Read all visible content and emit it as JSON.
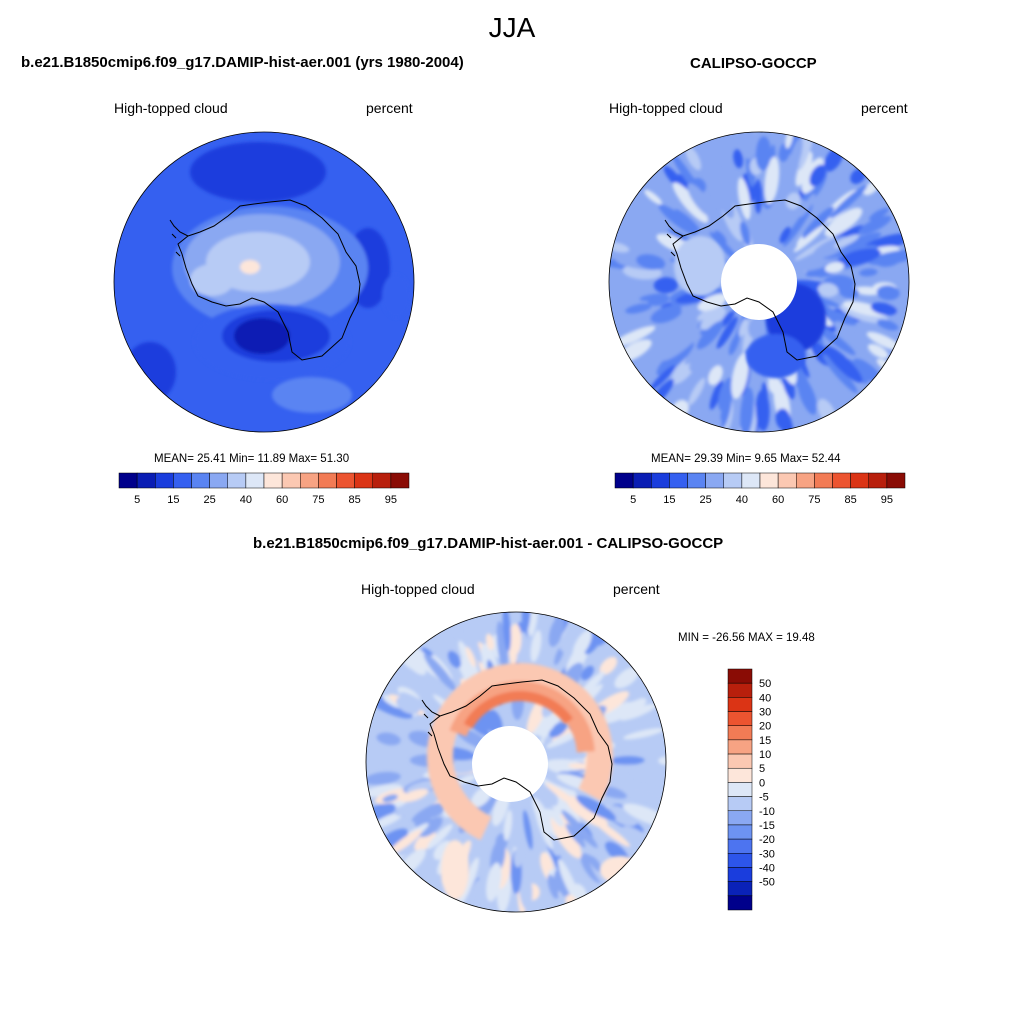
{
  "figure": {
    "title": "JJA"
  },
  "panels": [
    {
      "title": "b.e21.B1850cmip6.f09_g17.DAMIP-hist-aer.001 (yrs 1980-2004)",
      "variable": "High-topped cloud",
      "units": "percent",
      "stats": {
        "mean": "25.41",
        "min": "11.89",
        "max": "51.30"
      },
      "stats_text": "MEAN=  25.41  Min=  11.89  Max=  51.30"
    },
    {
      "title": "CALIPSO-GOCCP",
      "variable": "High-topped cloud",
      "units": "percent",
      "stats": {
        "mean": "29.39",
        "min": "9.65",
        "max": "52.44"
      },
      "stats_text": "MEAN=  29.39  Min=   9.65  Max=  52.44"
    },
    {
      "title": "b.e21.B1850cmip6.f09_g17.DAMIP-hist-aer.001 - CALIPSO-GOCCP",
      "variable": "High-topped cloud",
      "units": "percent",
      "stats": {
        "min": "-26.56",
        "max": "19.48"
      },
      "stats_text": "MIN = -26.56 MAX =  19.48"
    }
  ],
  "colorbars": {
    "absolute": {
      "colors": [
        "#00008b",
        "#0a1db4",
        "#1a3ddd",
        "#3560f0",
        "#5a84f2",
        "#8aa8f2",
        "#b7cbf5",
        "#dde7f7",
        "#fde6da",
        "#fbc8b2",
        "#f7a383",
        "#f27b55",
        "#ec5430",
        "#db3415",
        "#b81f0c",
        "#8a0c05"
      ],
      "tick_labels": [
        "5",
        "15",
        "25",
        "40",
        "60",
        "75",
        "85",
        "95"
      ]
    },
    "difference": {
      "colors": [
        "#8a0c05",
        "#b81f0c",
        "#db3415",
        "#ec5430",
        "#f27b55",
        "#f7a383",
        "#fbc8b2",
        "#fde6da",
        "#dde7f7",
        "#b7cbf5",
        "#8aa8f2",
        "#6d93f2",
        "#4d74f0",
        "#2d55ea",
        "#1a3ddd",
        "#0a22b8",
        "#00008b"
      ],
      "tick_labels": [
        "50",
        "40",
        "30",
        "20",
        "15",
        "10",
        "5",
        "0",
        "-5",
        "-10",
        "-15",
        "-20",
        "-30",
        "-40",
        "-50"
      ]
    }
  }
}
